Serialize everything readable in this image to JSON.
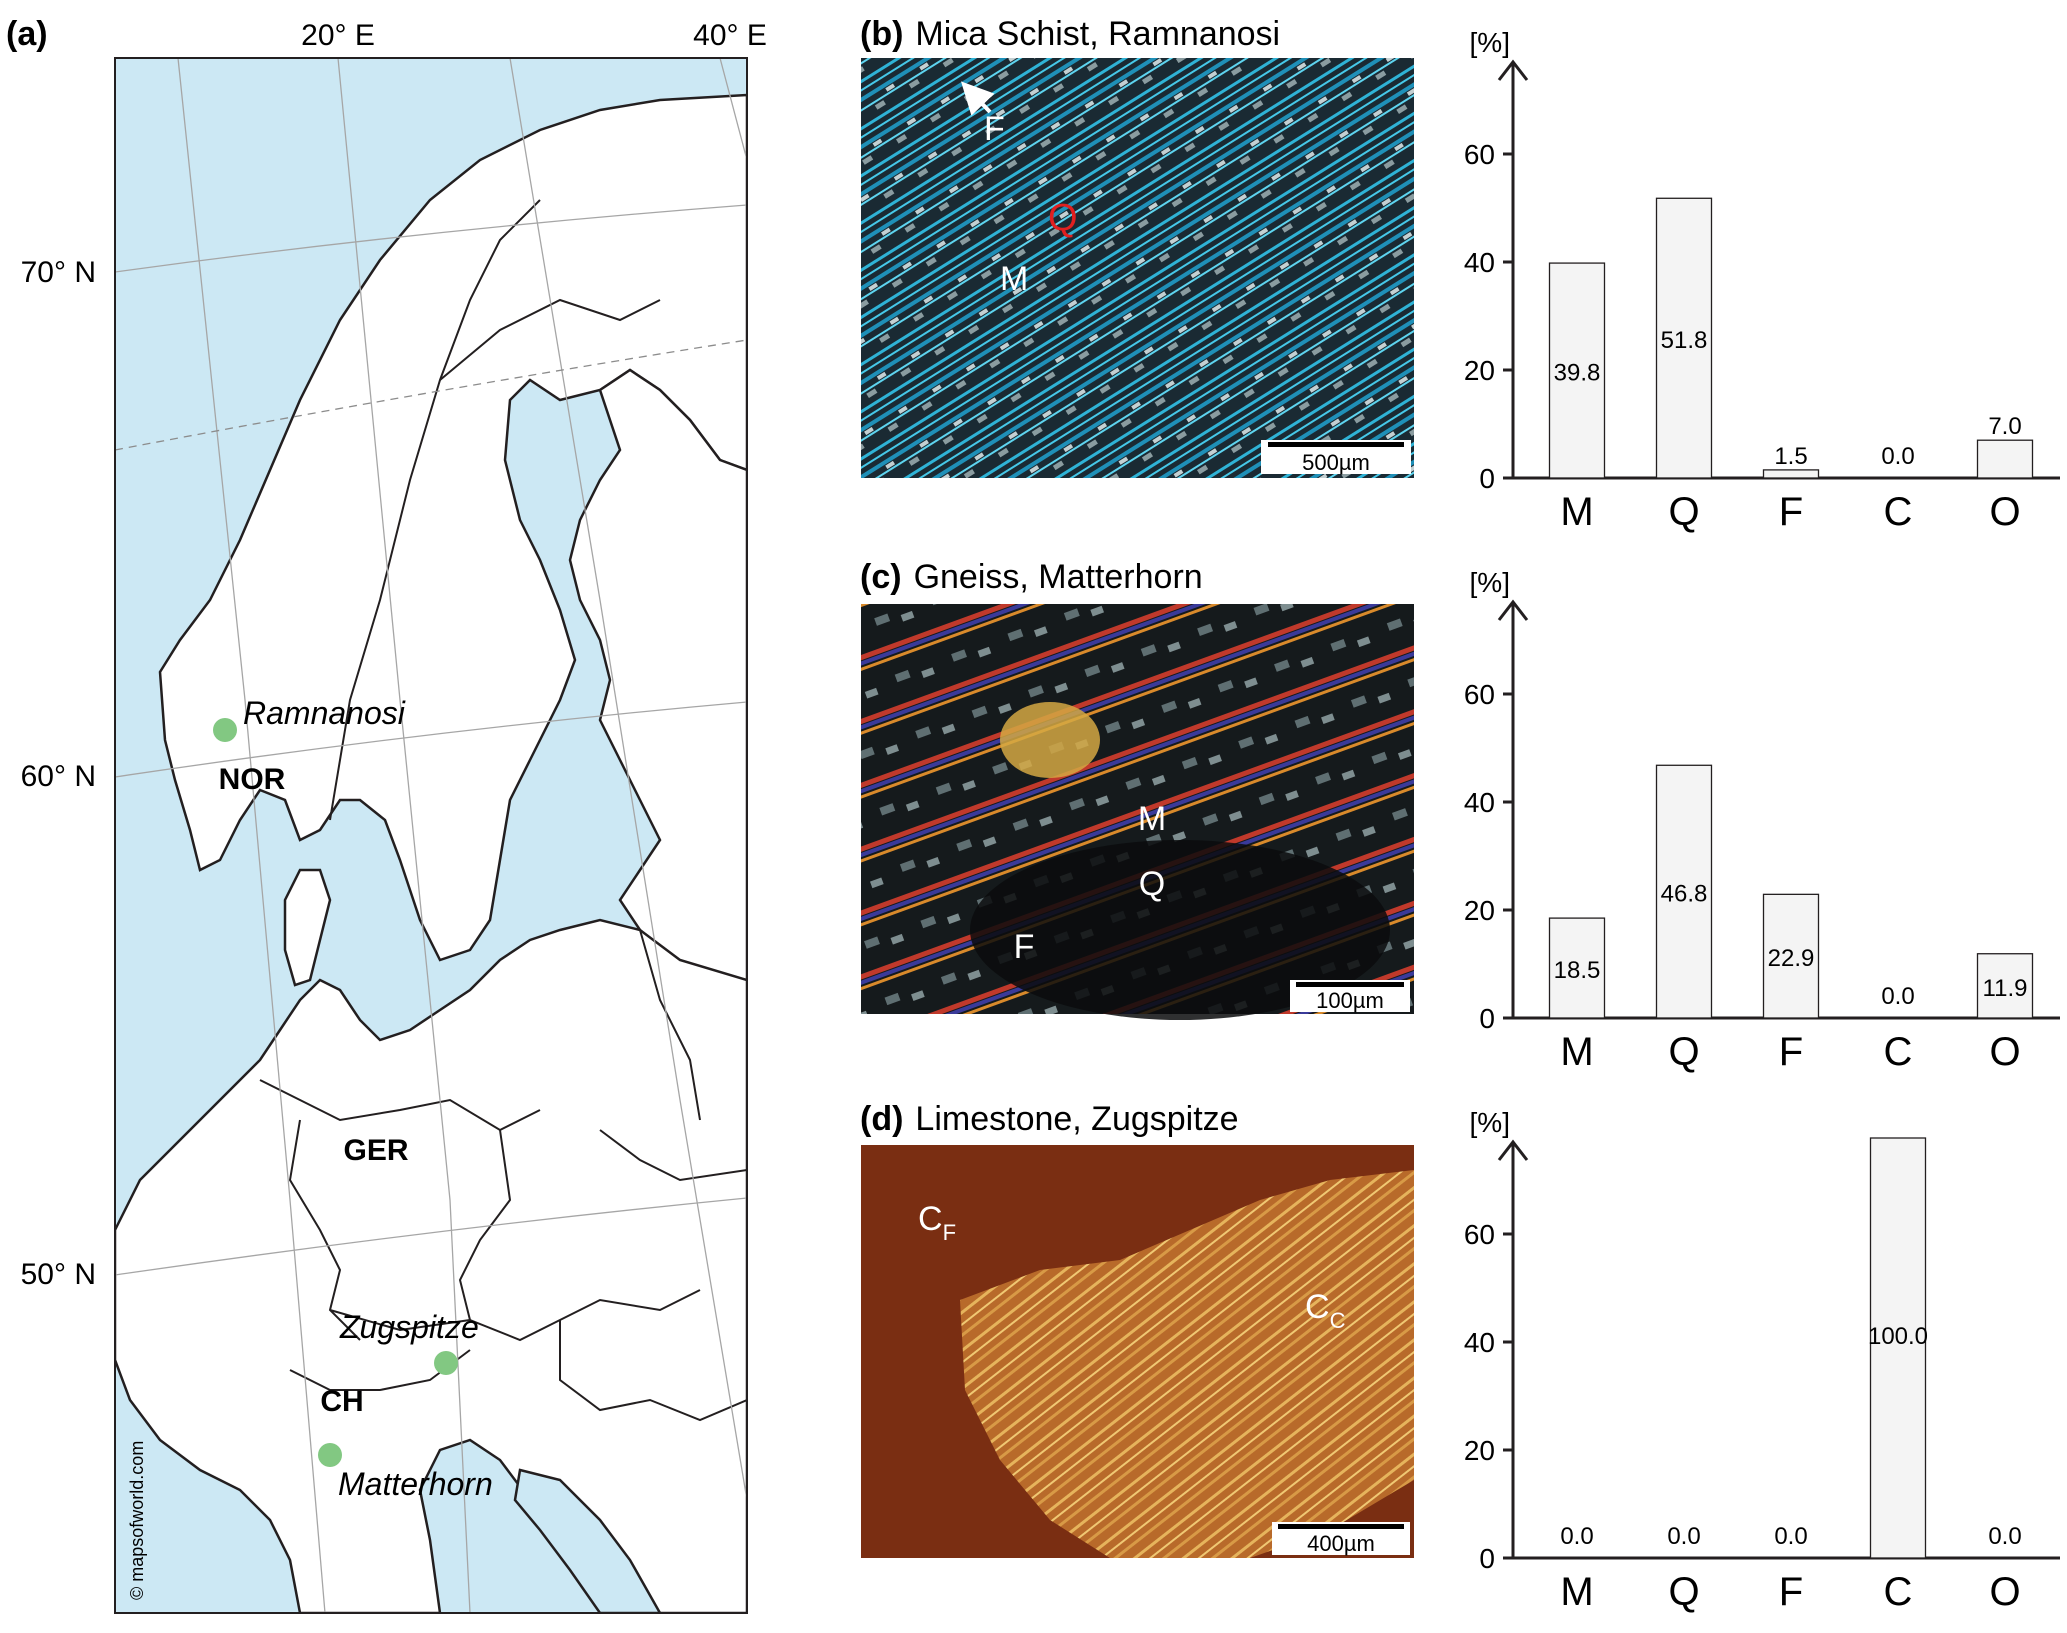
{
  "panel_a": {
    "label": "(a)",
    "lon_labels": [
      "20° E",
      "40° E"
    ],
    "lat_labels": [
      "70° N",
      "60° N",
      "50° N"
    ],
    "countries": [
      "NOR",
      "GER",
      "CH"
    ],
    "sites": [
      "Ramnanosi",
      "Zugspitze",
      "Matterhorn"
    ],
    "copyright": "© mapsofworld.com",
    "colors": {
      "sea": "#cce8f4",
      "land": "#ffffff",
      "border": "#231f20",
      "site_marker": "#82c882"
    }
  },
  "panels": [
    {
      "label": "(b)",
      "title": "Mica Schist, Ramnanosi",
      "image_labels": [
        "F",
        "Q",
        "M"
      ],
      "scale_bar": "500µm"
    },
    {
      "label": "(c)",
      "title": "Gneiss, Matterhorn",
      "image_labels": [
        "M",
        "Q",
        "F"
      ],
      "scale_bar": "100µm"
    },
    {
      "label": "(d)",
      "title": "Limestone, Zugspitze",
      "image_labels": [
        "C",
        "F",
        "C",
        "C"
      ],
      "scale_bar": "400µm"
    }
  ],
  "chart_data": [
    {
      "type": "bar",
      "categories": [
        "M",
        "Q",
        "F",
        "C",
        "O"
      ],
      "values": [
        39.8,
        51.8,
        1.5,
        0.0,
        7.0
      ],
      "value_labels": [
        "39.8",
        "51.8",
        "1.5",
        "0.0",
        "7.0"
      ],
      "ylabel": "[%]",
      "yticks": [
        "0",
        "20",
        "40",
        "60"
      ],
      "ylim": [
        0,
        75
      ],
      "bar_color": "#f4f4f4"
    },
    {
      "type": "bar",
      "categories": [
        "M",
        "Q",
        "F",
        "C",
        "O"
      ],
      "values": [
        18.5,
        46.8,
        22.9,
        0.0,
        11.9
      ],
      "value_labels": [
        "18.5",
        "46.8",
        "22.9",
        "0.0",
        "11.9"
      ],
      "ylabel": "[%]",
      "yticks": [
        "0",
        "20",
        "40",
        "60"
      ],
      "ylim": [
        0,
        75
      ],
      "bar_color": "#f4f4f4"
    },
    {
      "type": "bar",
      "categories": [
        "M",
        "Q",
        "F",
        "C",
        "O"
      ],
      "values": [
        0.0,
        0.0,
        0.0,
        100.0,
        0.0
      ],
      "value_labels": [
        "0.0",
        "0.0",
        "0.0",
        "100.0",
        "0.0"
      ],
      "ylabel": "[%]",
      "yticks": [
        "0",
        "20",
        "40",
        "60"
      ],
      "ylim": [
        0,
        75
      ],
      "bar_color": "#f4f4f4"
    }
  ]
}
